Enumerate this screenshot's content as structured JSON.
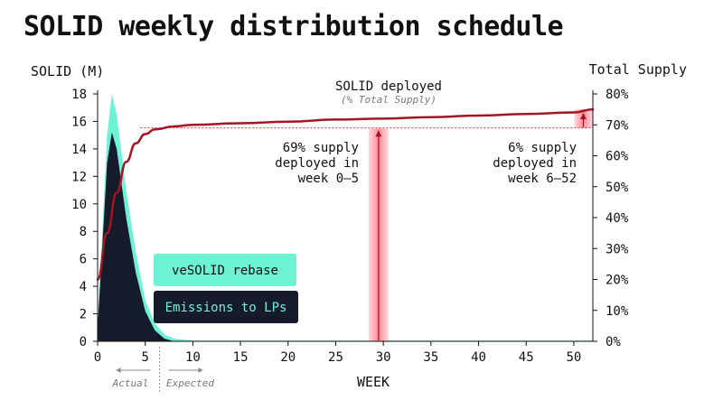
{
  "chart_data": {
    "type": "area",
    "title": "SOLID weekly distribution schedule",
    "xlabel": "WEEK",
    "ylabel_left": "SOLID (M)",
    "ylabel_right": "Total Supply",
    "xlim": [
      0,
      52
    ],
    "ylim_left": [
      0,
      18
    ],
    "ylim_right": [
      0,
      80
    ],
    "x_ticks": [
      0,
      5,
      10,
      15,
      20,
      25,
      30,
      35,
      40,
      45,
      50
    ],
    "y_ticks_left": [
      0,
      2,
      4,
      6,
      8,
      10,
      12,
      14,
      16,
      18
    ],
    "y_ticks_right": [
      "0%",
      "10%",
      "20%",
      "30%",
      "40%",
      "50%",
      "60%",
      "70%",
      "80%"
    ],
    "grid": false,
    "series": [
      {
        "name": "veSOLID rebase",
        "axis": "left",
        "color": "#6ef2d6",
        "x": [
          0,
          1,
          1.5,
          2,
          3,
          4,
          5,
          6,
          7,
          8,
          10,
          52
        ],
        "values": [
          1,
          15,
          18,
          16.5,
          11,
          6.5,
          3,
          1.3,
          0.5,
          0.2,
          0.05,
          0.05
        ]
      },
      {
        "name": "Emissions to LPs",
        "axis": "left",
        "color": "#161b2b",
        "x": [
          0,
          1,
          1.5,
          2,
          3,
          4,
          5,
          6,
          7,
          8,
          52
        ],
        "values": [
          1,
          13,
          15.2,
          14,
          9,
          5,
          2.2,
          0.8,
          0.2,
          0,
          0
        ]
      },
      {
        "name": "SOLID deployed",
        "axis": "right",
        "color": "#a31522",
        "x": [
          0,
          1,
          2,
          3,
          4,
          5,
          6,
          8,
          10,
          15,
          20,
          25,
          30,
          35,
          40,
          45,
          50,
          52
        ],
        "values": [
          20,
          35,
          48,
          58,
          64,
          67,
          68.5,
          69.5,
          70,
          70.5,
          71,
          71.7,
          72,
          72.5,
          73,
          73.5,
          74,
          75
        ]
      }
    ],
    "reference_line": {
      "right_value": 69,
      "color": "#d33b3b"
    },
    "highlight_bars": [
      {
        "x_center": 29.5,
        "from_right": 0,
        "to_right": 68.8
      },
      {
        "x_center": 51,
        "from_right": 69,
        "to_right": 75
      }
    ],
    "annotations": {
      "deployed_title": "SOLID deployed",
      "deployed_subtitle": "(% Total Supply)",
      "left_note": [
        "69% supply",
        "deployed in",
        "week 0–5"
      ],
      "right_note": [
        "6% supply",
        "deployed in",
        "week 6–52"
      ],
      "actual": "Actual",
      "expected": "Expected"
    },
    "legend": [
      {
        "label": "veSOLID rebase",
        "bg": "#6ef2d6",
        "text_color": "#111111"
      },
      {
        "label": "Emissions to LPs",
        "bg": "#161b2b",
        "text_color": "#6ef2d6"
      }
    ],
    "actual_expected_split_week": 6.5
  }
}
